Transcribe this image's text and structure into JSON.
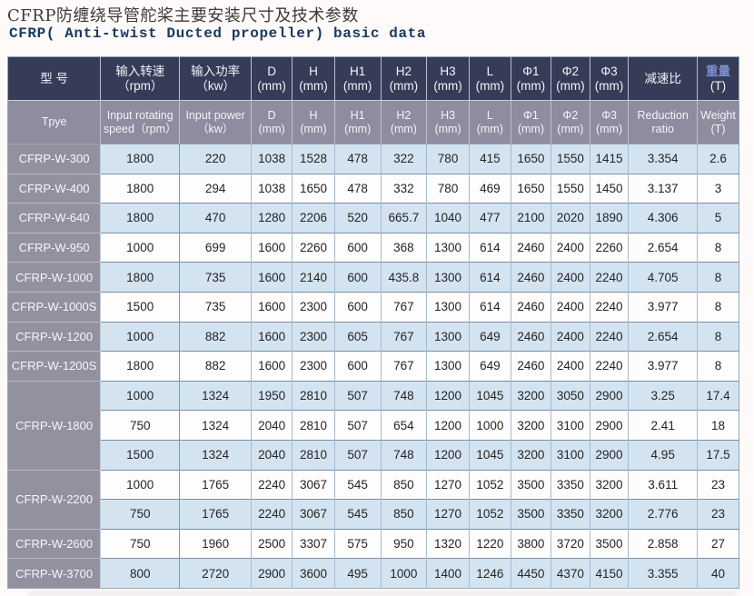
{
  "page": {
    "title_zh": "CFRP防缠绕导管舵桨主要安装尺寸及技术参数",
    "title_en": "CFRP( Anti-twist Ducted propeller) basic data"
  },
  "colors": {
    "header-dark": "#363c58",
    "header-gray": "#8e8c9e",
    "model-col": "#93919f",
    "row-blue": "#d3e3f0",
    "row-white": "#fdfdfd",
    "grid-dark": "#7d8fa2",
    "grid-light": "#a6bace",
    "grid-red": "#b08888",
    "title-blue": "#1a3a64",
    "weight-accent": "#7e90d0",
    "text-dark": "#242424"
  },
  "table": {
    "columns": [
      {
        "zh": [
          "型 号"
        ],
        "en": [
          "Tpye"
        ]
      },
      {
        "zh": [
          "输入转速",
          "（rpm）"
        ],
        "en": [
          "Input rotating",
          "speed（rpm）"
        ]
      },
      {
        "zh": [
          "输入功率",
          "（kw）"
        ],
        "en": [
          "Input power",
          "（kw）"
        ]
      },
      {
        "zh": [
          "D",
          "(mm)"
        ],
        "en": [
          "D",
          "(mm)"
        ]
      },
      {
        "zh": [
          "H",
          "(mm)"
        ],
        "en": [
          "H",
          "(mm)"
        ]
      },
      {
        "zh": [
          "H1",
          "(mm)"
        ],
        "en": [
          "H1",
          "(mm)"
        ]
      },
      {
        "zh": [
          "H2",
          "(mm)"
        ],
        "en": [
          "H2",
          "(mm)"
        ]
      },
      {
        "zh": [
          "H3",
          "(mm)"
        ],
        "en": [
          "H3",
          "(mm)"
        ]
      },
      {
        "zh": [
          "L",
          "(mm)"
        ],
        "en": [
          "L",
          "(mm)"
        ]
      },
      {
        "zh": [
          "Φ1",
          "(mm)"
        ],
        "en": [
          "Φ1",
          "(mm)"
        ]
      },
      {
        "zh": [
          "Φ2",
          "(mm)"
        ],
        "en": [
          "Φ2",
          "(mm)"
        ]
      },
      {
        "zh": [
          "Φ3",
          "(mm)"
        ],
        "en": [
          "Φ3",
          "(mm)"
        ]
      },
      {
        "zh": [
          "减速比"
        ],
        "en": [
          "Reduction",
          "ratio"
        ]
      },
      {
        "zh": [
          "重量",
          "(T)"
        ],
        "en": [
          "Weight",
          "(T)"
        ]
      }
    ],
    "groups": [
      {
        "model": "CFRP-W-300",
        "rows": [
          [
            "1800",
            "220",
            "1038",
            "1528",
            "478",
            "322",
            "780",
            "415",
            "1650",
            "1550",
            "1415",
            "3.354",
            "2.6"
          ]
        ]
      },
      {
        "model": "CFRP-W-400",
        "rows": [
          [
            "1800",
            "294",
            "1038",
            "1650",
            "478",
            "332",
            "780",
            "469",
            "1650",
            "1550",
            "1450",
            "3.137",
            "3"
          ]
        ]
      },
      {
        "model": "CFRP-W-640",
        "rows": [
          [
            "1800",
            "470",
            "1280",
            "2206",
            "520",
            "665.7",
            "1040",
            "477",
            "2100",
            "2020",
            "1890",
            "4.306",
            "5"
          ]
        ]
      },
      {
        "model": "CFRP-W-950",
        "rows": [
          [
            "1000",
            "699",
            "1600",
            "2260",
            "600",
            "368",
            "1300",
            "614",
            "2460",
            "2400",
            "2260",
            "2.654",
            "8"
          ]
        ]
      },
      {
        "model": "CFRP-W-1000",
        "rows": [
          [
            "1800",
            "735",
            "1600",
            "2140",
            "600",
            "435.8",
            "1300",
            "614",
            "2460",
            "2400",
            "2240",
            "4.705",
            "8"
          ]
        ]
      },
      {
        "model": "CFRP-W-1000S",
        "rows": [
          [
            "1500",
            "735",
            "1600",
            "2300",
            "600",
            "767",
            "1300",
            "614",
            "2460",
            "2400",
            "2240",
            "3.977",
            "8"
          ]
        ]
      },
      {
        "model": "CFRP-W-1200",
        "rows": [
          [
            "1000",
            "882",
            "1600",
            "2300",
            "605",
            "767",
            "1300",
            "649",
            "2460",
            "2400",
            "2240",
            "2.654",
            "8"
          ]
        ]
      },
      {
        "model": "CFRP-W-1200S",
        "rows": [
          [
            "1800",
            "882",
            "1600",
            "2300",
            "600",
            "767",
            "1300",
            "649",
            "2460",
            "2400",
            "2240",
            "3.977",
            "8"
          ]
        ]
      },
      {
        "model": "CFRP-W-1800",
        "rows": [
          [
            "1000",
            "1324",
            "1950",
            "2810",
            "507",
            "748",
            "1200",
            "1045",
            "3200",
            "3050",
            "2900",
            "3.25",
            "17.4"
          ],
          [
            "750",
            "1324",
            "2040",
            "2810",
            "507",
            "654",
            "1200",
            "1000",
            "3200",
            "3100",
            "2900",
            "2.41",
            "18"
          ],
          [
            "1500",
            "1324",
            "2040",
            "2810",
            "507",
            "748",
            "1200",
            "1045",
            "3200",
            "3100",
            "2900",
            "4.95",
            "17.5"
          ]
        ]
      },
      {
        "model": "CFRP-W-2200",
        "rows": [
          [
            "1000",
            "1765",
            "2240",
            "3067",
            "545",
            "850",
            "1270",
            "1052",
            "3500",
            "3350",
            "3200",
            "3.611",
            "23"
          ],
          [
            "750",
            "1765",
            "2240",
            "3067",
            "545",
            "850",
            "1270",
            "1052",
            "3500",
            "3350",
            "3200",
            "2.776",
            "23"
          ]
        ]
      },
      {
        "model": "CFRP-W-2600",
        "rows": [
          [
            "750",
            "1960",
            "2500",
            "3307",
            "575",
            "950",
            "1320",
            "1220",
            "3800",
            "3720",
            "3500",
            "2.858",
            "27"
          ]
        ]
      },
      {
        "model": "CFRP-W-3700",
        "rows": [
          [
            "800",
            "2720",
            "2900",
            "3600",
            "495",
            "1000",
            "1400",
            "1246",
            "4450",
            "4370",
            "4150",
            "3.355",
            "40"
          ]
        ]
      }
    ]
  }
}
